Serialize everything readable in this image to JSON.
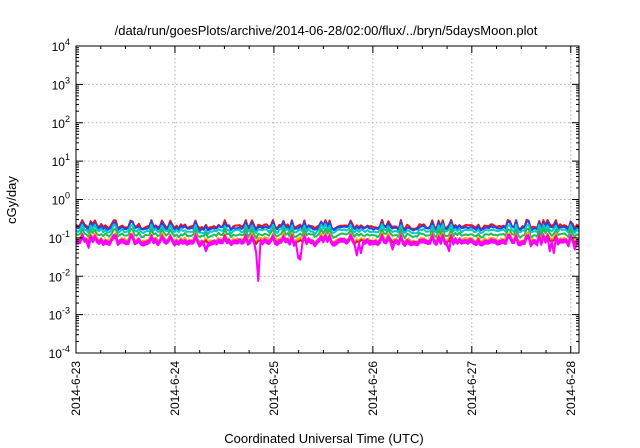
{
  "chart_data": {
    "type": "line",
    "title": "/data/run/goesPlots/archive/2014-06-28/02:00/flux/../bryn/5daysMoon.plot",
    "xlabel": "Coordinated Universal Time (UTC)",
    "ylabel": "cGy/day",
    "yscale": "log",
    "ylim": [
      0.0001,
      10000
    ],
    "y_ticks": [
      {
        "value": 0.0001,
        "base": "10",
        "exp": "-4"
      },
      {
        "value": 0.001,
        "base": "10",
        "exp": "-3"
      },
      {
        "value": 0.01,
        "base": "10",
        "exp": "-2"
      },
      {
        "value": 0.1,
        "base": "10",
        "exp": "-1"
      },
      {
        "value": 1,
        "base": "10",
        "exp": "0"
      },
      {
        "value": 10,
        "base": "10",
        "exp": "1"
      },
      {
        "value": 100,
        "base": "10",
        "exp": "2"
      },
      {
        "value": 1000,
        "base": "10",
        "exp": "3"
      },
      {
        "value": 10000,
        "base": "10",
        "exp": "4"
      }
    ],
    "xlim": [
      "2014-06-23 00:00",
      "2014-06-28 02:00"
    ],
    "x_ticks": [
      "2014-6-23",
      "2014-6-24",
      "2014-6-25",
      "2014-6-26",
      "2014-6-27",
      "2014-6-28"
    ],
    "grid": true,
    "legend": "none",
    "series": [
      {
        "color": "#ff00ff",
        "base": 0.075,
        "fill": true,
        "dips": [
          [
            "2014-06-23 03:00",
            0.055
          ],
          [
            "2014-06-24 07:30",
            0.045
          ],
          [
            "2014-06-24 19:30",
            0.04
          ],
          [
            "2014-06-24 20:00",
            0.0075
          ],
          [
            "2014-06-25 06:00",
            0.03
          ],
          [
            "2014-06-25 06:30",
            0.027
          ],
          [
            "2014-06-25 20:00",
            0.035
          ],
          [
            "2014-06-25 21:00",
            0.04
          ],
          [
            "2014-06-26 05:00",
            0.05
          ],
          [
            "2014-06-26 18:30",
            0.045
          ],
          [
            "2014-06-27 19:00",
            0.045
          ],
          [
            "2014-06-27 20:00",
            0.04
          ],
          [
            "2014-06-28 01:00",
            0.05
          ]
        ]
      },
      {
        "color": "#cc2222",
        "base": 0.085,
        "fill": false,
        "dips": []
      },
      {
        "color": "#ffa500",
        "base": 0.095,
        "fill": false,
        "dips": []
      },
      {
        "color": "#22bb55",
        "base": 0.125,
        "fill": false,
        "dips": []
      },
      {
        "color": "#00cccc",
        "base": 0.16,
        "fill": false,
        "dips": []
      },
      {
        "color": "#2244ee",
        "base": 0.19,
        "fill": false,
        "dips": []
      },
      {
        "color": "#ee1111",
        "base": 0.21,
        "fill": false,
        "dips": []
      }
    ]
  }
}
